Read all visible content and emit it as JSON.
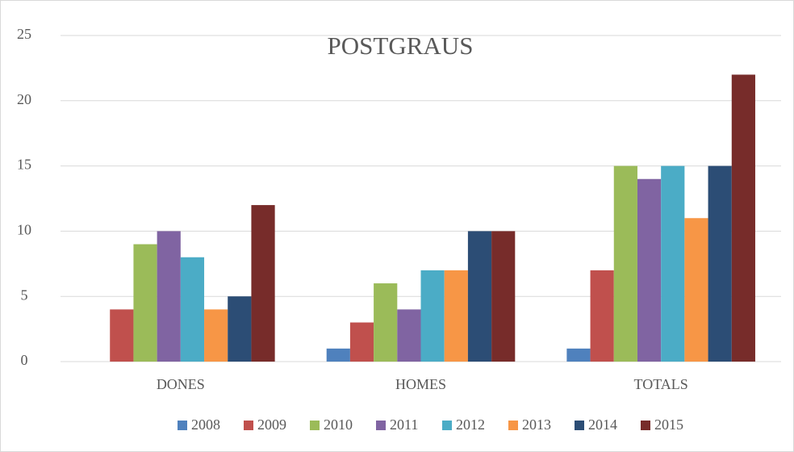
{
  "chart_data": {
    "type": "bar",
    "title": "POSTGRAUS",
    "categories": [
      "DONES",
      "HOMES",
      "TOTALS"
    ],
    "series": [
      {
        "name": "2008",
        "color": "#4f81bd",
        "values": [
          0,
          1,
          1
        ]
      },
      {
        "name": "2009",
        "color": "#c0504d",
        "values": [
          4,
          3,
          7
        ]
      },
      {
        "name": "2010",
        "color": "#9bbb59",
        "values": [
          9,
          6,
          15
        ]
      },
      {
        "name": "2011",
        "color": "#8064a2",
        "values": [
          10,
          4,
          14
        ]
      },
      {
        "name": "2012",
        "color": "#4bacc6",
        "values": [
          8,
          7,
          15
        ]
      },
      {
        "name": "2013",
        "color": "#f79646",
        "values": [
          4,
          7,
          11
        ]
      },
      {
        "name": "2014",
        "color": "#2c4d75",
        "values": [
          5,
          10,
          15
        ]
      },
      {
        "name": "2015",
        "color": "#772c2a",
        "values": [
          12,
          10,
          22
        ]
      }
    ],
    "ylim": [
      0,
      25
    ],
    "yticks": [
      0,
      5,
      10,
      15,
      20,
      25
    ],
    "grid": true,
    "legend": "bottom"
  }
}
